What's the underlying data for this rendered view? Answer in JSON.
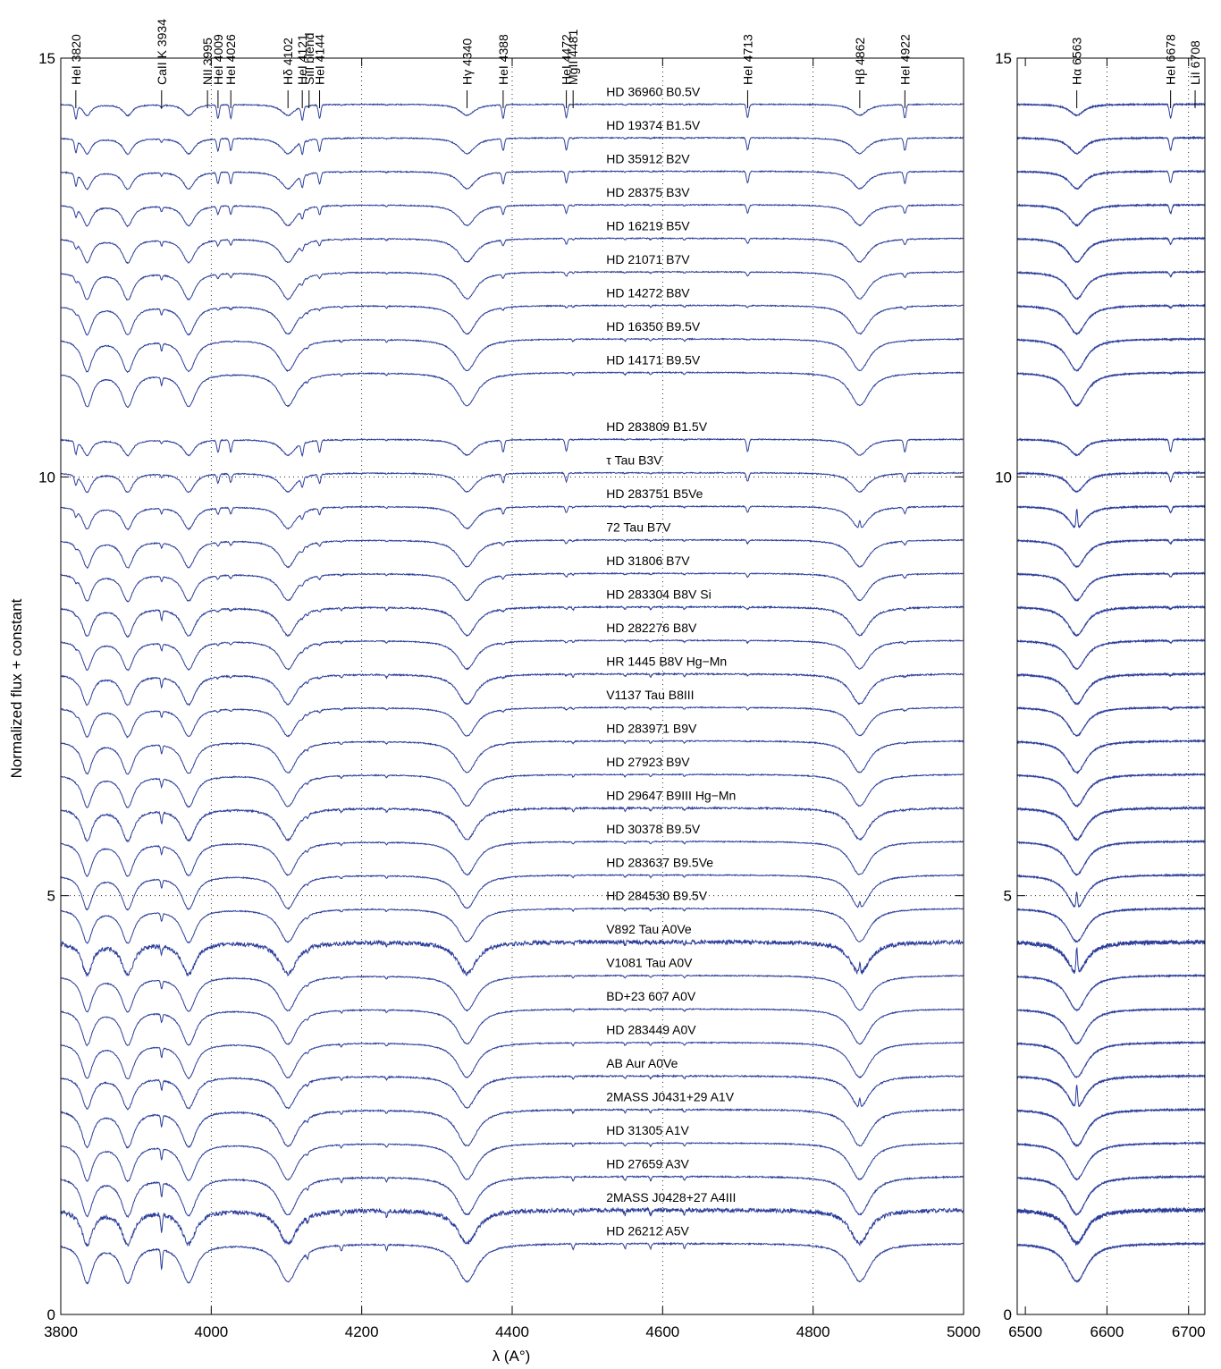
{
  "chart_data": {
    "type": "line",
    "ylabel": "Normalized flux + constant",
    "xlabel": "λ (A°)",
    "grid": "dotted",
    "panels": [
      {
        "name": "main",
        "xlim": [
          3800,
          5000
        ],
        "ylim": [
          0,
          15
        ],
        "xticks": [
          3800,
          4000,
          4200,
          4400,
          4600,
          4800,
          5000
        ],
        "yticks": [
          0,
          5,
          10,
          15
        ],
        "grid_x": [
          4000,
          4200,
          4400,
          4600,
          4800
        ],
        "grid_y": [
          5,
          10
        ]
      },
      {
        "name": "halpha",
        "xlim": [
          6490,
          6720
        ],
        "ylim": [
          0,
          15
        ],
        "xticks": [
          6500,
          6600,
          6700
        ],
        "yticks": [
          0,
          5,
          10,
          15
        ],
        "grid_x": [
          6600,
          6700
        ],
        "grid_y": [
          5,
          10
        ]
      }
    ],
    "line_markers": [
      {
        "label": "HeI 3820",
        "wl": 3820
      },
      {
        "label": "CaII K 3934",
        "wl": 3934
      },
      {
        "label": "NII 3995",
        "wl": 3995
      },
      {
        "label": "HeI 4009",
        "wl": 4009
      },
      {
        "label": "HeI 4026",
        "wl": 4026
      },
      {
        "label": "Hδ 4102",
        "wl": 4102
      },
      {
        "label": "HeI 4121",
        "wl": 4121
      },
      {
        "label": "SiII blend",
        "wl": 4130
      },
      {
        "label": "HeI 4144",
        "wl": 4144
      },
      {
        "label": "Hγ 4340",
        "wl": 4340
      },
      {
        "label": "HeI 4388",
        "wl": 4388
      },
      {
        "label": "HeI 4472",
        "wl": 4472
      },
      {
        "label": "MgII 4481",
        "wl": 4481
      },
      {
        "label": "HeI 4713",
        "wl": 4713
      },
      {
        "label": "Hβ 4862",
        "wl": 4862
      },
      {
        "label": "HeI 4922",
        "wl": 4922
      },
      {
        "label": "Hα 6563",
        "wl": 6563
      },
      {
        "label": "HeI 6678",
        "wl": 6678
      },
      {
        "label": "LiI 6708",
        "wl": 6708
      }
    ],
    "series": [
      {
        "name": "HD 36960 B0.5V",
        "offset": 14.45,
        "he": 1.0,
        "h": 0.35,
        "met": 0.1,
        "noise": 0.03,
        "em": 0
      },
      {
        "name": "HD 19374 B1.5V",
        "offset": 14.05,
        "he": 0.9,
        "h": 0.5,
        "met": 0.1,
        "noise": 0.03,
        "em": 0
      },
      {
        "name": "HD 35912 B2V",
        "offset": 13.65,
        "he": 0.85,
        "h": 0.55,
        "met": 0.1,
        "noise": 0.03,
        "em": 0
      },
      {
        "name": "HD 28375 B3V",
        "offset": 13.25,
        "he": 0.6,
        "h": 0.65,
        "met": 0.15,
        "noise": 0.03,
        "em": 0
      },
      {
        "name": "HD 16219 B5V",
        "offset": 12.85,
        "he": 0.4,
        "h": 0.75,
        "met": 0.15,
        "noise": 0.03,
        "em": 0
      },
      {
        "name": "HD 21071 B7V",
        "offset": 12.45,
        "he": 0.3,
        "h": 0.85,
        "met": 0.15,
        "noise": 0.03,
        "em": 0
      },
      {
        "name": "HD 14272 B8V",
        "offset": 12.05,
        "he": 0.15,
        "h": 0.9,
        "met": 0.2,
        "noise": 0.03,
        "em": 0
      },
      {
        "name": "HD 16350 B9.5V",
        "offset": 11.65,
        "he": 0.05,
        "h": 1.0,
        "met": 0.25,
        "noise": 0.03,
        "em": 0
      },
      {
        "name": "HD 14171 B9.5V",
        "offset": 11.25,
        "he": 0.05,
        "h": 1.05,
        "met": 0.25,
        "noise": 0.03,
        "em": 0
      },
      {
        "name": "HD 283809 B1.5V",
        "offset": 10.45,
        "he": 0.9,
        "h": 0.5,
        "met": 0.1,
        "noise": 0.03,
        "em": 0
      },
      {
        "name": "τ Tau B3V",
        "offset": 10.05,
        "he": 0.65,
        "h": 0.6,
        "met": 0.1,
        "noise": 0.03,
        "em": 0
      },
      {
        "name": "HD 283751 B5Ve",
        "offset": 9.65,
        "he": 0.45,
        "h": 0.7,
        "met": 0.15,
        "noise": 0.03,
        "em": 0.6
      },
      {
        "name": "72 Tau B7V",
        "offset": 9.25,
        "he": 0.25,
        "h": 0.85,
        "met": 0.15,
        "noise": 0.03,
        "em": 0
      },
      {
        "name": "HD 31806 B7V",
        "offset": 8.85,
        "he": 0.25,
        "h": 0.85,
        "met": 0.15,
        "noise": 0.03,
        "em": 0
      },
      {
        "name": "HD 283304 B8V Si",
        "offset": 8.45,
        "he": 0.15,
        "h": 0.9,
        "met": 0.3,
        "noise": 0.04,
        "em": 0
      },
      {
        "name": "HD 282276 B8V",
        "offset": 8.05,
        "he": 0.15,
        "h": 0.9,
        "met": 0.2,
        "noise": 0.03,
        "em": 0
      },
      {
        "name": "HR 1445 B8V Hg−Mn",
        "offset": 7.65,
        "he": 0.1,
        "h": 0.95,
        "met": 0.3,
        "noise": 0.04,
        "em": 0
      },
      {
        "name": "V1137 Tau B8III",
        "offset": 7.25,
        "he": 0.15,
        "h": 0.9,
        "met": 0.2,
        "noise": 0.03,
        "em": 0
      },
      {
        "name": "HD 283971 B9V",
        "offset": 6.85,
        "he": 0.05,
        "h": 1.0,
        "met": 0.25,
        "noise": 0.03,
        "em": 0
      },
      {
        "name": "HD 27923 B9V",
        "offset": 6.45,
        "he": 0.05,
        "h": 1.0,
        "met": 0.25,
        "noise": 0.03,
        "em": 0
      },
      {
        "name": "HD 29647 B9III Hg−Mn",
        "offset": 6.05,
        "he": 0.05,
        "h": 1.0,
        "met": 0.35,
        "noise": 0.05,
        "em": 0
      },
      {
        "name": "HD 30378 B9.5V",
        "offset": 5.65,
        "he": 0.02,
        "h": 1.05,
        "met": 0.25,
        "noise": 0.03,
        "em": 0
      },
      {
        "name": "HD 283637 B9.5Ve",
        "offset": 5.25,
        "he": 0.02,
        "h": 1.05,
        "met": 0.25,
        "noise": 0.03,
        "em": 0.5
      },
      {
        "name": "HD 284530 B9.5V",
        "offset": 4.85,
        "he": 0.02,
        "h": 1.05,
        "met": 0.25,
        "noise": 0.03,
        "em": 0
      },
      {
        "name": "V892 Tau A0Ve",
        "offset": 4.45,
        "he": 0.0,
        "h": 1.0,
        "met": 0.25,
        "noise": 0.12,
        "em": 0.8
      },
      {
        "name": "V1081 Tau A0V",
        "offset": 4.05,
        "he": 0.0,
        "h": 1.1,
        "met": 0.25,
        "noise": 0.03,
        "em": 0
      },
      {
        "name": "BD+23 607 A0V",
        "offset": 3.65,
        "he": 0.0,
        "h": 1.1,
        "met": 0.25,
        "noise": 0.03,
        "em": 0
      },
      {
        "name": "HD 283449 A0V",
        "offset": 3.25,
        "he": 0.0,
        "h": 1.1,
        "met": 0.3,
        "noise": 0.03,
        "em": 0
      },
      {
        "name": "AB Aur A0Ve",
        "offset": 2.85,
        "he": 0.0,
        "h": 1.0,
        "met": 0.3,
        "noise": 0.04,
        "em": 0.7
      },
      {
        "name": "2MASS J0431+29 A1V",
        "offset": 2.45,
        "he": 0.0,
        "h": 1.15,
        "met": 0.35,
        "noise": 0.04,
        "em": 0
      },
      {
        "name": "HD 31305 A1V",
        "offset": 2.05,
        "he": 0.0,
        "h": 1.15,
        "met": 0.35,
        "noise": 0.03,
        "em": 0
      },
      {
        "name": "HD 27659 A3V",
        "offset": 1.65,
        "he": 0.0,
        "h": 1.2,
        "met": 0.45,
        "noise": 0.04,
        "em": 0
      },
      {
        "name": "2MASS J0428+27 A4III",
        "offset": 1.25,
        "he": 0.0,
        "h": 1.05,
        "met": 0.55,
        "noise": 0.12,
        "em": 0
      },
      {
        "name": "HD 26212 A5V",
        "offset": 0.85,
        "he": 0.0,
        "h": 1.2,
        "met": 0.6,
        "noise": 0.04,
        "em": 0
      }
    ],
    "line_color": "#2c3e9a"
  }
}
